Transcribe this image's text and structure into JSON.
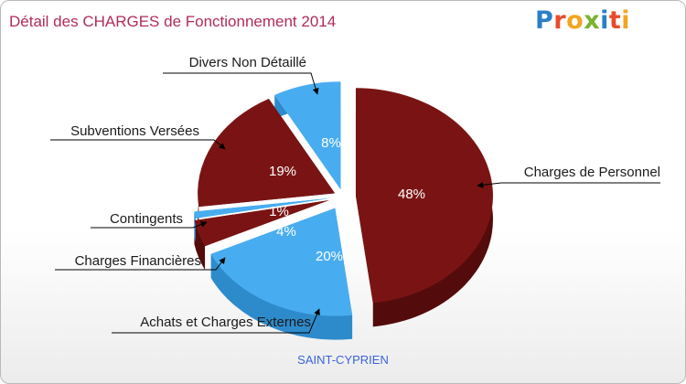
{
  "title": "Détail des CHARGES de Fonctionnement 2014",
  "logo": {
    "text": "Proxiti"
  },
  "commune": "SAINT-CYPRIEN",
  "colors": {
    "dark_red": "#7a1414",
    "dark_red_side": "#5c0e0e",
    "blue": "#48adf0",
    "blue_side": "#2f8ed0",
    "title": "#b22c5a"
  },
  "chart_data": {
    "type": "pie",
    "title": "Détail des CHARGES de Fonctionnement 2014",
    "legend": "none",
    "slices": [
      {
        "label": "Charges de Personnel",
        "value": 48,
        "pct_label": "48%",
        "color": "#7a1414"
      },
      {
        "label": "Achats et Charges Externes",
        "value": 20,
        "pct_label": "20%",
        "color": "#48adf0"
      },
      {
        "label": "Charges Financières",
        "value": 4,
        "pct_label": "4%",
        "color": "#7a1414"
      },
      {
        "label": "Contingents",
        "value": 1,
        "pct_label": "1%",
        "color": "#48adf0"
      },
      {
        "label": "Subventions Versées",
        "value": 19,
        "pct_label": "19%",
        "color": "#7a1414"
      },
      {
        "label": "Divers Non Détaillé",
        "value": 8,
        "pct_label": "8%",
        "color": "#48adf0"
      }
    ]
  }
}
